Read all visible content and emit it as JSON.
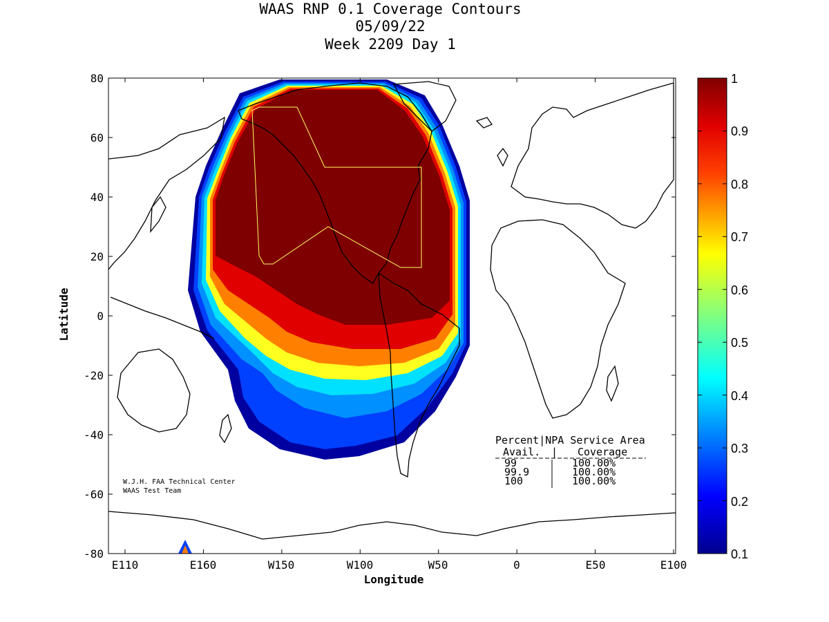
{
  "title": {
    "line1": "WAAS RNP 0.1 Coverage Contours",
    "line2": "05/09/22",
    "line3": "Week 2209 Day 1"
  },
  "axes": {
    "xlabel": "Longitude",
    "ylabel": "Latitude",
    "x_ticks": [
      "E110",
      "E160",
      "W150",
      "W100",
      "W50",
      "0",
      "E50",
      "E100"
    ],
    "y_ticks": [
      "80",
      "60",
      "40",
      "20",
      "0",
      "-20",
      "-40",
      "-60",
      "-80"
    ]
  },
  "colorbar": {
    "ticks": [
      "1",
      "0.9",
      "0.8",
      "0.7",
      "0.6",
      "0.5",
      "0.4",
      "0.3",
      "0.2",
      "0.1"
    ],
    "range": [
      0.1,
      1
    ]
  },
  "stats_table": {
    "header_line1": "Percent|NPA Service Area",
    "header_col1": "Avail.",
    "header_col2": "Coverage",
    "rows": [
      {
        "avail": "99",
        "coverage": "100.00%"
      },
      {
        "avail": "99.9",
        "coverage": "100.00%"
      },
      {
        "avail": "100",
        "coverage": "100.00%"
      }
    ]
  },
  "credit": {
    "line1": "W.J.H. FAA Technical Center",
    "line2": "WAAS Test Team"
  },
  "colors": {
    "dark_red": "#7f0000",
    "red": "#e00000",
    "orange": "#ff8000",
    "yellow": "#ffff00",
    "cyan": "#00e0ff",
    "blue": "#0040ff",
    "dark_blue": "#00008f",
    "service_area_outline": "#ffff66"
  }
}
